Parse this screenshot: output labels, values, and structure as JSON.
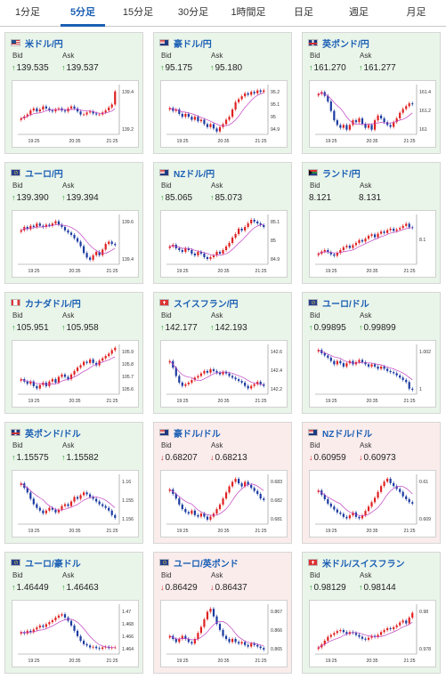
{
  "tabs": [
    {
      "label": "1分足",
      "active": false
    },
    {
      "label": "5分足",
      "active": true
    },
    {
      "label": "15分足",
      "active": false
    },
    {
      "label": "30分足",
      "active": false
    },
    {
      "label": "1時間足",
      "active": false
    },
    {
      "label": "日足",
      "active": false
    },
    {
      "label": "週足",
      "active": false
    },
    {
      "label": "月足",
      "active": false
    }
  ],
  "labels": {
    "bid": "Bid",
    "ask": "Ask"
  },
  "colors": {
    "up_arrow": "#2a9d2a",
    "down_arrow": "#d03030",
    "candle_up": "#e02020",
    "candle_down": "#1a3aa0",
    "ma_line": "#c040c0",
    "pair_text": "#1a5fb4"
  },
  "cards": [
    {
      "pair": "米ドル/円",
      "flag": "us",
      "dir": "up",
      "bid": "139.535",
      "ask": "139.537",
      "chart": {
        "x_ticks": [
          "19:25",
          "20:35",
          "21:25"
        ],
        "y_ticks": [
          "139.4",
          "139.2"
        ],
        "y_range": [
          139.1,
          139.6
        ],
        "closes": [
          139.26,
          139.28,
          139.3,
          139.34,
          139.36,
          139.33,
          139.35,
          139.38,
          139.36,
          139.34,
          139.33,
          139.35,
          139.36,
          139.34,
          139.33,
          139.36,
          139.38,
          139.36,
          139.33,
          139.3,
          139.3,
          139.32,
          139.33,
          139.31,
          139.3,
          139.3,
          139.32,
          139.34,
          139.37,
          139.4,
          139.53
        ]
      }
    },
    {
      "pair": "豪ドル/円",
      "flag": "au",
      "dir": "up",
      "bid": "95.175",
      "ask": "95.180",
      "chart": {
        "x_ticks": [
          "19:25",
          "20:35",
          "21:25"
        ],
        "y_ticks": [
          "95.2",
          "95.1",
          "95",
          "94.9"
        ],
        "y_range": [
          94.88,
          95.22
        ],
        "closes": [
          95.06,
          95.04,
          95.05,
          95.02,
          95.0,
          95.02,
          95.0,
          94.98,
          95.0,
          94.97,
          94.98,
          94.95,
          94.93,
          94.95,
          94.92,
          94.9,
          94.93,
          94.95,
          94.98,
          95.0,
          95.05,
          95.1,
          95.12,
          95.14,
          95.16,
          95.15,
          95.17,
          95.16,
          95.18,
          95.17,
          95.18
        ]
      }
    },
    {
      "pair": "英ポンド/円",
      "flag": "gb",
      "dir": "up",
      "bid": "161.270",
      "ask": "161.277",
      "chart": {
        "x_ticks": [
          "19:25",
          "20:35",
          "21:25"
        ],
        "y_ticks": [
          "161.4",
          "161.2",
          "161"
        ],
        "y_range": [
          160.95,
          161.48
        ],
        "closes": [
          161.38,
          161.4,
          161.36,
          161.3,
          161.2,
          161.1,
          161.05,
          161.02,
          161.05,
          161.0,
          161.05,
          161.1,
          161.08,
          161.12,
          161.06,
          161.02,
          161.05,
          161.0,
          161.1,
          161.15,
          161.12,
          161.08,
          161.05,
          161.03,
          161.08,
          161.12,
          161.18,
          161.22,
          161.25,
          161.28,
          161.27
        ]
      }
    },
    {
      "pair": "ユーロ/円",
      "flag": "eu",
      "dir": "up",
      "bid": "139.390",
      "ask": "139.394",
      "chart": {
        "x_ticks": [
          "19:25",
          "20:35",
          "21:25"
        ],
        "y_ticks": [
          "139.6",
          "139.4"
        ],
        "y_range": [
          139.22,
          139.66
        ],
        "closes": [
          139.52,
          139.55,
          139.53,
          139.56,
          139.55,
          139.58,
          139.56,
          139.55,
          139.57,
          139.56,
          139.58,
          139.6,
          139.57,
          139.55,
          139.52,
          139.5,
          139.48,
          139.45,
          139.42,
          139.38,
          139.32,
          139.28,
          139.26,
          139.3,
          139.33,
          139.3,
          139.35,
          139.4,
          139.42,
          139.4,
          139.39
        ]
      }
    },
    {
      "pair": "NZドル/円",
      "flag": "nz",
      "dir": "up",
      "bid": "85.065",
      "ask": "85.073",
      "chart": {
        "x_ticks": [
          "19:25",
          "20:35",
          "21:25"
        ],
        "y_ticks": [
          "85.1",
          "85",
          "84.9"
        ],
        "y_range": [
          84.85,
          85.13
        ],
        "closes": [
          84.95,
          84.96,
          84.94,
          84.93,
          84.92,
          84.94,
          84.93,
          84.91,
          84.9,
          84.92,
          84.91,
          84.89,
          84.88,
          84.89,
          84.9,
          84.92,
          84.91,
          84.93,
          84.95,
          84.97,
          85.0,
          85.02,
          85.05,
          85.04,
          85.06,
          85.08,
          85.1,
          85.09,
          85.08,
          85.07,
          85.06
        ]
      }
    },
    {
      "pair": "ランド/円",
      "flag": "za",
      "dir": "none",
      "bid": "8.121",
      "ask": "8.131",
      "chart": {
        "x_ticks": [
          "19:25",
          "20:35",
          "21:25"
        ],
        "y_ticks": [
          "8.1"
        ],
        "y_range": [
          8.07,
          8.14
        ],
        "closes": [
          8.085,
          8.088,
          8.09,
          8.087,
          8.084,
          8.082,
          8.086,
          8.09,
          8.094,
          8.096,
          8.093,
          8.097,
          8.1,
          8.104,
          8.102,
          8.106,
          8.11,
          8.112,
          8.108,
          8.113,
          8.116,
          8.114,
          8.118,
          8.12,
          8.117,
          8.119,
          8.121,
          8.124,
          8.127,
          8.122,
          8.121
        ]
      }
    },
    {
      "pair": "カナダドル/円",
      "flag": "ca",
      "dir": "up",
      "bid": "105.951",
      "ask": "105.958",
      "chart": {
        "x_ticks": [
          "19:25",
          "20:35",
          "21:25"
        ],
        "y_ticks": [
          "105.9",
          "105.8",
          "105.7",
          "105.6"
        ],
        "y_range": [
          105.55,
          105.98
        ],
        "closes": [
          105.68,
          105.66,
          105.64,
          105.66,
          105.62,
          105.6,
          105.63,
          105.65,
          105.62,
          105.66,
          105.68,
          105.65,
          105.7,
          105.72,
          105.7,
          105.68,
          105.72,
          105.75,
          105.78,
          105.8,
          105.83,
          105.82,
          105.85,
          105.82,
          105.8,
          105.84,
          105.86,
          105.88,
          105.9,
          105.93,
          105.95
        ]
      }
    },
    {
      "pair": "スイスフラン/円",
      "flag": "ch",
      "dir": "up",
      "bid": "142.177",
      "ask": "142.193",
      "chart": {
        "x_ticks": [
          "19:25",
          "20:35",
          "21:25"
        ],
        "y_ticks": [
          "142.6",
          "142.4",
          "142.2"
        ],
        "y_range": [
          142.08,
          142.68
        ],
        "closes": [
          142.48,
          142.4,
          142.3,
          142.22,
          142.18,
          142.2,
          142.22,
          142.25,
          142.28,
          142.3,
          142.33,
          142.36,
          142.34,
          142.38,
          142.36,
          142.34,
          142.32,
          142.35,
          142.33,
          142.3,
          142.28,
          142.26,
          142.24,
          142.22,
          142.18,
          142.15,
          142.18,
          142.2,
          142.23,
          142.2,
          142.18
        ]
      }
    },
    {
      "pair": "ユーロ/ドル",
      "flag": "eu",
      "dir": "up",
      "bid": "0.99895",
      "ask": "0.99899",
      "chart": {
        "x_ticks": [
          "19:25",
          "20:35",
          "21:25"
        ],
        "y_ticks": [
          "1.002",
          "1"
        ],
        "y_range": [
          0.9985,
          1.003
        ],
        "closes": [
          1.0025,
          1.0022,
          1.002,
          1.0018,
          1.0015,
          1.0012,
          1.0015,
          1.0013,
          1.001,
          1.0013,
          1.0015,
          1.0012,
          1.0014,
          1.0016,
          1.0014,
          1.0012,
          1.001,
          1.0012,
          1.001,
          1.0008,
          1.001,
          1.0008,
          1.0006,
          1.0005,
          1.0004,
          1.0002,
          1.0,
          0.9998,
          0.9996,
          0.999,
          0.9989
        ]
      }
    },
    {
      "pair": "英ポンド/ドル",
      "flag": "gb",
      "dir": "up",
      "bid": "1.15575",
      "ask": "1.15582",
      "chart": {
        "x_ticks": [
          "19:25",
          "20:35",
          "21:25"
        ],
        "y_ticks": [
          "1.16",
          "1.155",
          "1.156"
        ],
        "y_range": [
          1.155,
          1.1605
        ],
        "closes": [
          1.1595,
          1.159,
          1.1585,
          1.1578,
          1.1572,
          1.1568,
          1.1565,
          1.1562,
          1.1565,
          1.1568,
          1.1566,
          1.1563,
          1.1566,
          1.157,
          1.1572,
          1.157,
          1.1575,
          1.158,
          1.1578,
          1.1582,
          1.1585,
          1.1583,
          1.158,
          1.1578,
          1.1575,
          1.1572,
          1.157,
          1.1568,
          1.1565,
          1.156,
          1.1557
        ]
      }
    },
    {
      "pair": "豪ドル/ドル",
      "flag": "au",
      "dir": "down",
      "bid": "0.68207",
      "ask": "0.68213",
      "chart": {
        "x_ticks": [
          "19:25",
          "20:35",
          "21:25"
        ],
        "y_ticks": [
          "0.683",
          "0.682",
          "0.681"
        ],
        "y_range": [
          0.6805,
          0.6838
        ],
        "closes": [
          0.6828,
          0.6825,
          0.6822,
          0.6818,
          0.6815,
          0.6813,
          0.6812,
          0.6814,
          0.6811,
          0.681,
          0.6812,
          0.681,
          0.6808,
          0.681,
          0.6812,
          0.6815,
          0.6818,
          0.6822,
          0.6826,
          0.683,
          0.6833,
          0.6835,
          0.6832,
          0.683,
          0.6833,
          0.6831,
          0.6829,
          0.6827,
          0.6825,
          0.6822,
          0.6821
        ]
      }
    },
    {
      "pair": "NZドル/ドル",
      "flag": "nz",
      "dir": "down",
      "bid": "0.60959",
      "ask": "0.60973",
      "chart": {
        "x_ticks": [
          "19:25",
          "20:35",
          "21:25"
        ],
        "y_ticks": [
          "0.61",
          "0.609"
        ],
        "y_range": [
          0.6082,
          0.6116
        ],
        "closes": [
          0.6105,
          0.6102,
          0.6099,
          0.6096,
          0.6094,
          0.6092,
          0.609,
          0.6089,
          0.6087,
          0.6086,
          0.6088,
          0.609,
          0.6087,
          0.6086,
          0.6088,
          0.6091,
          0.6094,
          0.6097,
          0.61,
          0.6104,
          0.6108,
          0.6111,
          0.6113,
          0.611,
          0.6108,
          0.6106,
          0.6104,
          0.6101,
          0.6099,
          0.6097,
          0.6096
        ]
      }
    },
    {
      "pair": "ユーロ/豪ドル",
      "flag": "eu",
      "dir": "up",
      "bid": "1.46449",
      "ask": "1.46463",
      "chart": {
        "x_ticks": [
          "19:25",
          "20:35",
          "21:25"
        ],
        "y_ticks": [
          "1.47",
          "1.468",
          "1.466",
          "1.464"
        ],
        "y_range": [
          1.4635,
          1.471
        ],
        "closes": [
          1.4668,
          1.4666,
          1.467,
          1.4668,
          1.4672,
          1.4675,
          1.4678,
          1.4676,
          1.468,
          1.4683,
          1.4686,
          1.469,
          1.4693,
          1.4695,
          1.469,
          1.4685,
          1.4678,
          1.467,
          1.4662,
          1.4655,
          1.465,
          1.4648,
          1.4645,
          1.4646,
          1.4644,
          1.4643,
          1.4645,
          1.4646,
          1.4644,
          1.4645,
          1.4645
        ]
      }
    },
    {
      "pair": "ユーロ/英ポンド",
      "flag": "eu",
      "dir": "down",
      "bid": "0.86429",
      "ask": "0.86437",
      "chart": {
        "x_ticks": [
          "19:25",
          "20:35",
          "21:25"
        ],
        "y_ticks": [
          "0.867",
          "0.866",
          "0.865"
        ],
        "y_range": [
          0.864,
          0.8673
        ],
        "closes": [
          0.8652,
          0.865,
          0.8648,
          0.865,
          0.8652,
          0.865,
          0.8648,
          0.8647,
          0.865,
          0.8654,
          0.8658,
          0.8663,
          0.8668,
          0.867,
          0.8665,
          0.866,
          0.8656,
          0.8652,
          0.865,
          0.8648,
          0.865,
          0.8648,
          0.8647,
          0.8648,
          0.8646,
          0.8645,
          0.8647,
          0.8646,
          0.8645,
          0.8644,
          0.8643
        ]
      }
    },
    {
      "pair": "米ドル/スイスフラン",
      "flag": "ch",
      "dir": "up",
      "bid": "0.98129",
      "ask": "0.98144",
      "chart": {
        "x_ticks": [
          "19:25",
          "20:35",
          "21:25"
        ],
        "y_ticks": [
          "0.98",
          "0.978"
        ],
        "y_range": [
          0.977,
          0.9822
        ],
        "closes": [
          0.9777,
          0.978,
          0.9784,
          0.9788,
          0.979,
          0.9792,
          0.9794,
          0.9795,
          0.9793,
          0.9791,
          0.9793,
          0.9792,
          0.979,
          0.9788,
          0.9786,
          0.9785,
          0.9787,
          0.9789,
          0.9788,
          0.979,
          0.9793,
          0.9795,
          0.9797,
          0.9796,
          0.9798,
          0.98,
          0.9803,
          0.9805,
          0.9802,
          0.9808,
          0.9813
        ]
      }
    }
  ]
}
